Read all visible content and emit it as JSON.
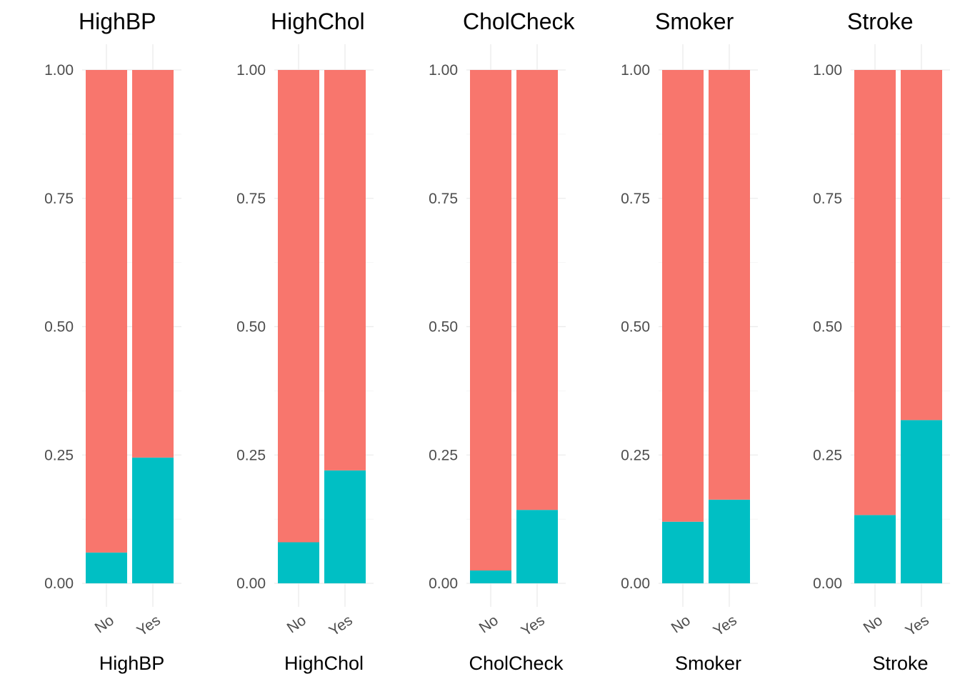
{
  "chart_data": [
    {
      "type": "bar",
      "stacked": true,
      "position": "fill",
      "title": "HighBP",
      "xlabel": "HighBP",
      "ylabel": "",
      "categories": [
        "No",
        "Yes"
      ],
      "series": [
        {
          "values": [
            0.06,
            0.245
          ],
          "color": "#00BFC4"
        },
        {
          "values": [
            0.94,
            0.755
          ],
          "color": "#F8766D"
        }
      ],
      "ylim": [
        0,
        1
      ],
      "yticks": [
        "0.00",
        "0.25",
        "0.50",
        "0.75",
        "1.00"
      ],
      "grid": true,
      "legend": "none"
    },
    {
      "type": "bar",
      "stacked": true,
      "position": "fill",
      "title": "HighChol",
      "xlabel": "HighChol",
      "ylabel": "",
      "categories": [
        "No",
        "Yes"
      ],
      "series": [
        {
          "values": [
            0.08,
            0.22
          ],
          "color": "#00BFC4"
        },
        {
          "values": [
            0.92,
            0.78
          ],
          "color": "#F8766D"
        }
      ],
      "ylim": [
        0,
        1
      ],
      "yticks": [
        "0.00",
        "0.25",
        "0.50",
        "0.75",
        "1.00"
      ],
      "grid": true,
      "legend": "none"
    },
    {
      "type": "bar",
      "stacked": true,
      "position": "fill",
      "title": "CholCheck",
      "xlabel": "CholCheck",
      "ylabel": "",
      "categories": [
        "No",
        "Yes"
      ],
      "series": [
        {
          "values": [
            0.025,
            0.143
          ],
          "color": "#00BFC4"
        },
        {
          "values": [
            0.975,
            0.857
          ],
          "color": "#F8766D"
        }
      ],
      "ylim": [
        0,
        1
      ],
      "yticks": [
        "0.00",
        "0.25",
        "0.50",
        "0.75",
        "1.00"
      ],
      "grid": true,
      "legend": "none"
    },
    {
      "type": "bar",
      "stacked": true,
      "position": "fill",
      "title": "Smoker",
      "xlabel": "Smoker",
      "ylabel": "",
      "categories": [
        "No",
        "Yes"
      ],
      "series": [
        {
          "values": [
            0.12,
            0.163
          ],
          "color": "#00BFC4"
        },
        {
          "values": [
            0.88,
            0.837
          ],
          "color": "#F8766D"
        }
      ],
      "ylim": [
        0,
        1
      ],
      "yticks": [
        "0.00",
        "0.25",
        "0.50",
        "0.75",
        "1.00"
      ],
      "grid": true,
      "legend": "none"
    },
    {
      "type": "bar",
      "stacked": true,
      "position": "fill",
      "title": "Stroke",
      "xlabel": "Stroke",
      "ylabel": "",
      "categories": [
        "No",
        "Yes"
      ],
      "series": [
        {
          "values": [
            0.133,
            0.318
          ],
          "color": "#00BFC4"
        },
        {
          "values": [
            0.867,
            0.682
          ],
          "color": "#F8766D"
        }
      ],
      "ylim": [
        0,
        1
      ],
      "yticks": [
        "0.00",
        "0.25",
        "0.50",
        "0.75",
        "1.00"
      ],
      "grid": true,
      "legend": "none"
    }
  ]
}
